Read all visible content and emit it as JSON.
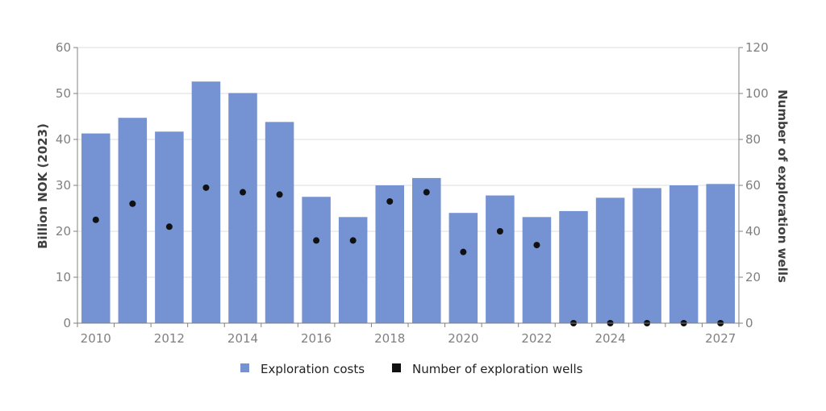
{
  "chart_data": {
    "type": "bar",
    "categories": [
      "2010",
      "2011",
      "2012",
      "2013",
      "2014",
      "2015",
      "2016",
      "2017",
      "2018",
      "2019",
      "2020",
      "2021",
      "2022",
      "2023",
      "2024",
      "2025",
      "2026",
      "2027"
    ],
    "x_tick_labels": [
      {
        "index": 0,
        "label": "2010"
      },
      {
        "index": 2,
        "label": "2012"
      },
      {
        "index": 4,
        "label": "2014"
      },
      {
        "index": 6,
        "label": "2016"
      },
      {
        "index": 8,
        "label": "2018"
      },
      {
        "index": 10,
        "label": "2020"
      },
      {
        "index": 12,
        "label": "2022"
      },
      {
        "index": 14,
        "label": "2024"
      },
      {
        "index": 17,
        "label": "2027"
      }
    ],
    "series": [
      {
        "name": "Exploration costs",
        "kind": "bar",
        "axis": "left",
        "color": "#7592d2",
        "values": [
          41.3,
          44.7,
          41.7,
          52.6,
          50.1,
          43.8,
          27.5,
          23.1,
          30.0,
          31.6,
          24.0,
          27.8,
          23.1,
          24.4,
          27.3,
          29.4,
          30.0,
          30.3
        ]
      },
      {
        "name": "Number of exploration wells",
        "kind": "scatter",
        "axis": "right",
        "color": "#111111",
        "values": [
          45,
          52,
          42,
          59,
          57,
          56,
          36,
          36,
          53,
          57,
          31,
          40,
          34,
          0,
          0,
          0,
          0,
          0
        ]
      }
    ],
    "ylabel": "Billion NOK (2023)",
    "y2label": "Number of exploration wells",
    "ylim": [
      0,
      60
    ],
    "y2lim": [
      0,
      120
    ],
    "yticks": [
      0,
      10,
      20,
      30,
      40,
      50,
      60
    ],
    "y2ticks": [
      0,
      20,
      40,
      60,
      80,
      100,
      120
    ],
    "grid": "horizontal",
    "legend": {
      "placement": "bottom-center",
      "entries": [
        {
          "label": "Exploration costs",
          "color": "#7592d2"
        },
        {
          "label": "Number of exploration wells",
          "color": "#111111"
        }
      ]
    }
  }
}
